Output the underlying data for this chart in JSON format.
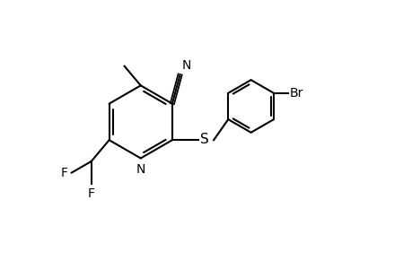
{
  "bg_color": "#ffffff",
  "line_color": "#000000",
  "line_width": 1.5,
  "font_size": 10,
  "fig_width": 4.6,
  "fig_height": 3.0,
  "dpi": 100,
  "xlim": [
    -2.5,
    4.8
  ],
  "ylim": [
    -2.8,
    2.5
  ]
}
